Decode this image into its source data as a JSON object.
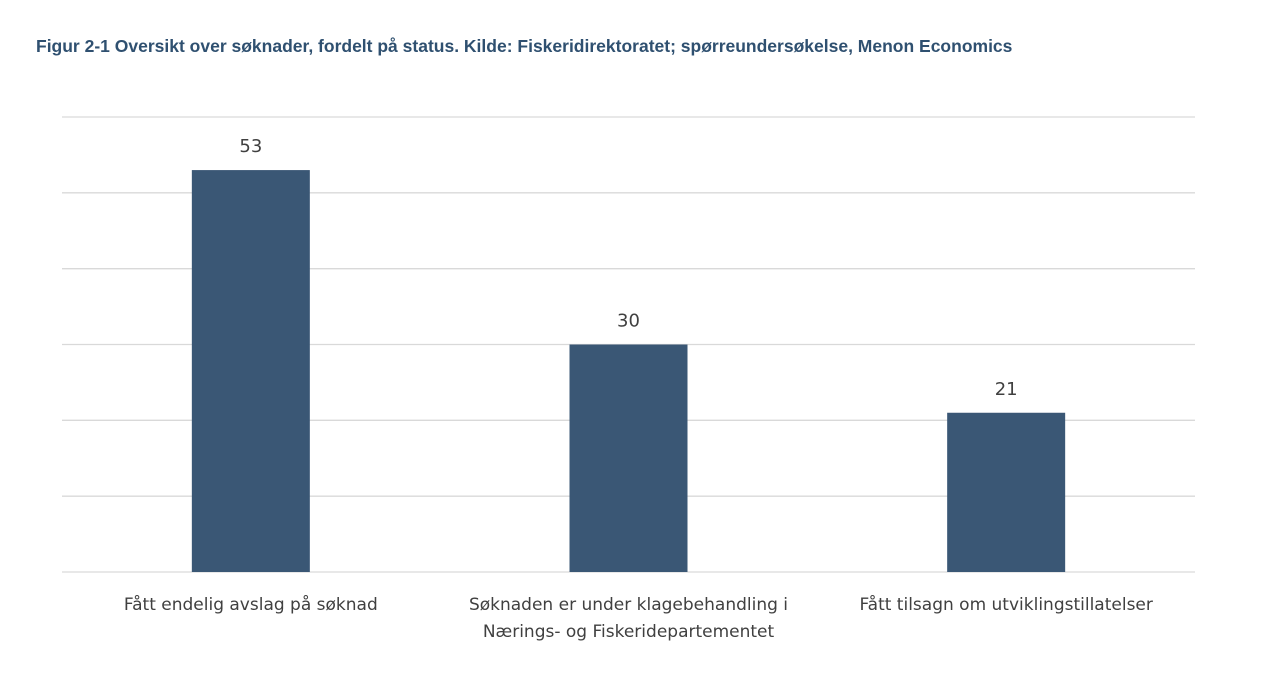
{
  "chart_data": {
    "type": "bar",
    "title": "Figur 2-1 Oversikt over søknader, fordelt på status. Kilde: Fiskeridirektoratet; spørreundersøkelse, Menon Economics",
    "categories": [
      [
        "Fått endelig avslag på søknad"
      ],
      [
        "Søknaden er under klagebehandling i",
        "Nærings- og Fiskeridepartementet"
      ],
      [
        "Fått tilsagn om utviklingstillatelser"
      ]
    ],
    "values": [
      53,
      30,
      21
    ],
    "xlabel": "",
    "ylabel": "",
    "ylim": [
      0,
      60
    ],
    "ytick_step": 10,
    "grid": true,
    "y_tick_labels_shown": false,
    "bar_color": "#3a5775",
    "grid_color": "#d9d9d9"
  }
}
